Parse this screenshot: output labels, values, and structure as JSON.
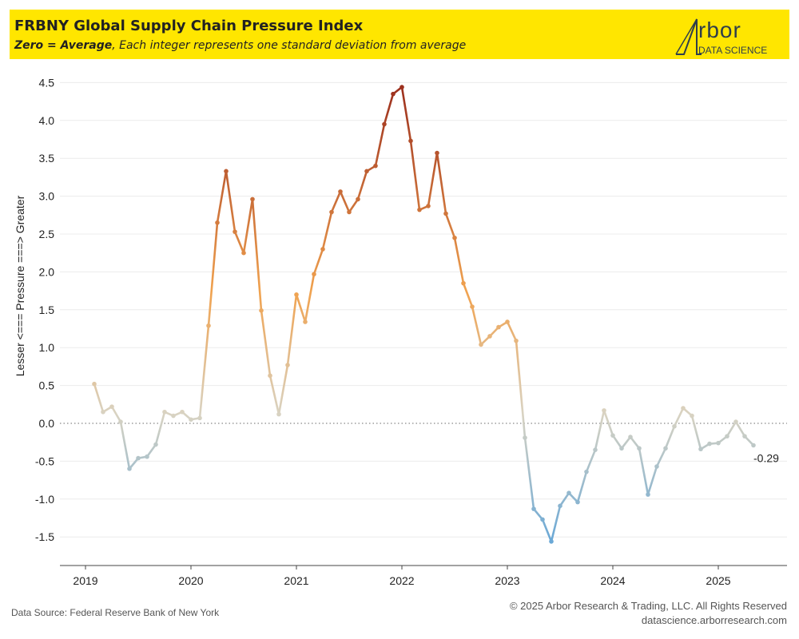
{
  "header": {
    "title": "FRBNY Global Supply Chain Pressure Index",
    "subtitle_bold": "Zero = Average",
    "subtitle_rest": ", Each integer represents one standard deviation from average",
    "logo_word": "rbor",
    "logo_sub": "DATA SCIENCE"
  },
  "footer": {
    "source": "Data Source: Federal Reserve Bank of New York",
    "copyright": "© 2025 Arbor Research & Trading, LLC. All Rights Reserved",
    "url": "datascience.arborresearch.com"
  },
  "colors": {
    "header_bg": "#ffe600",
    "high": "#9c2f1d",
    "mid": "#f0a24f",
    "neutral": "#d9d3c2",
    "low": "#6aa8d6"
  },
  "chart_data": {
    "type": "line",
    "title": "FRBNY Global Supply Chain Pressure Index",
    "ylabel": "Lesser <=== Pressure ===> Greater",
    "xlabel": "",
    "ylim": [
      -1.75,
      4.6
    ],
    "yticks": [
      -1.5,
      -1.0,
      -0.5,
      0.0,
      0.5,
      1.0,
      1.5,
      2.0,
      2.5,
      3.0,
      3.5,
      4.0,
      4.5
    ],
    "ytick_labels": [
      "-1.5",
      "-1.0",
      "-0.5",
      "0.0",
      "0.5",
      "1.0",
      "1.5",
      "2.0",
      "2.5",
      "3.0",
      "3.5",
      "4.0",
      "4.5"
    ],
    "xticks": [
      "2019",
      "2020",
      "2021",
      "2022",
      "2023",
      "2024",
      "2025"
    ],
    "reference_line": 0,
    "last_value_label": "-0.29",
    "grid": true,
    "x": [
      "2019-02",
      "2019-03",
      "2019-04",
      "2019-05",
      "2019-06",
      "2019-07",
      "2019-08",
      "2019-09",
      "2019-10",
      "2019-11",
      "2019-12",
      "2020-01",
      "2020-02",
      "2020-03",
      "2020-04",
      "2020-05",
      "2020-06",
      "2020-07",
      "2020-08",
      "2020-09",
      "2020-10",
      "2020-11",
      "2020-12",
      "2021-01",
      "2021-02",
      "2021-03",
      "2021-04",
      "2021-05",
      "2021-06",
      "2021-07",
      "2021-08",
      "2021-09",
      "2021-10",
      "2021-11",
      "2021-12",
      "2022-01",
      "2022-02",
      "2022-03",
      "2022-04",
      "2022-05",
      "2022-06",
      "2022-07",
      "2022-08",
      "2022-09",
      "2022-10",
      "2022-11",
      "2022-12",
      "2023-01",
      "2023-02",
      "2023-03",
      "2023-04",
      "2023-05",
      "2023-06",
      "2023-07",
      "2023-08",
      "2023-09",
      "2023-10",
      "2023-11",
      "2023-12",
      "2024-01",
      "2024-02",
      "2024-03",
      "2024-04",
      "2024-05",
      "2024-06",
      "2024-07",
      "2024-08",
      "2024-09",
      "2024-10",
      "2024-11",
      "2024-12",
      "2025-01",
      "2025-02",
      "2025-03",
      "2025-04",
      "2025-05"
    ],
    "values": [
      0.52,
      0.15,
      0.22,
      0.02,
      -0.6,
      -0.46,
      -0.44,
      -0.28,
      0.15,
      0.1,
      0.15,
      0.05,
      0.07,
      1.29,
      2.65,
      3.33,
      2.53,
      2.25,
      2.96,
      1.49,
      0.63,
      0.12,
      0.77,
      1.7,
      1.34,
      1.97,
      2.3,
      2.79,
      3.06,
      2.79,
      2.96,
      3.33,
      3.4,
      3.95,
      4.35,
      4.44,
      3.73,
      2.82,
      2.87,
      3.57,
      2.77,
      2.45,
      1.85,
      1.54,
      1.04,
      1.15,
      1.27,
      1.34,
      1.09,
      -0.19,
      -1.13,
      -1.27,
      -1.56,
      -1.09,
      -0.92,
      -1.04,
      -0.64,
      -0.35,
      0.17,
      -0.16,
      -0.33,
      -0.18,
      -0.33,
      -0.94,
      -0.57,
      -0.33,
      -0.04,
      0.2,
      0.1,
      -0.34,
      -0.27,
      -0.26,
      -0.17,
      0.02,
      -0.17,
      -0.29
    ]
  }
}
